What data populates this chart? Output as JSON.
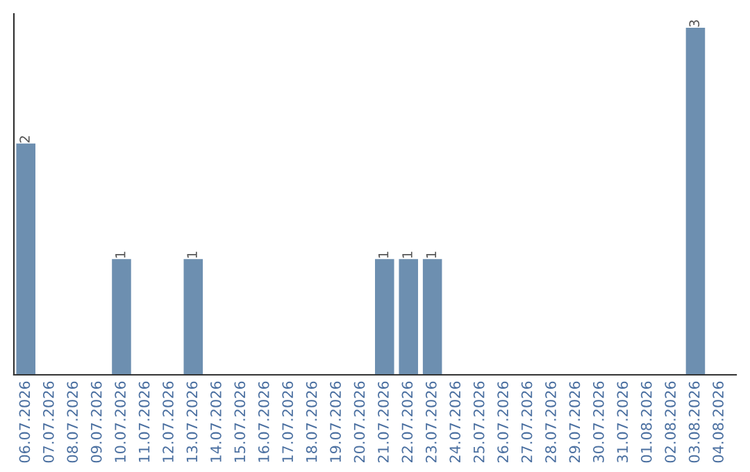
{
  "chart_data": {
    "type": "bar",
    "categories": [
      "06.07.2026",
      "07.07.2026",
      "08.07.2026",
      "09.07.2026",
      "10.07.2026",
      "11.07.2026",
      "12.07.2026",
      "13.07.2026",
      "14.07.2026",
      "15.07.2026",
      "16.07.2026",
      "17.07.2026",
      "18.07.2026",
      "19.07.2026",
      "20.07.2026",
      "21.07.2026",
      "22.07.2026",
      "23.07.2026",
      "24.07.2026",
      "25.07.2026",
      "26.07.2026",
      "27.07.2026",
      "28.07.2026",
      "29.07.2026",
      "30.07.2026",
      "31.07.2026",
      "01.08.2026",
      "02.08.2026",
      "03.08.2026",
      "04.08.2026"
    ],
    "values": [
      2,
      0,
      0,
      0,
      1,
      0,
      0,
      1,
      0,
      0,
      0,
      0,
      0,
      0,
      0,
      1,
      1,
      1,
      0,
      0,
      0,
      0,
      0,
      0,
      0,
      0,
      0,
      0,
      3,
      0
    ],
    "value_labels": [
      "2",
      null,
      null,
      null,
      "1",
      null,
      null,
      "1",
      null,
      null,
      null,
      null,
      null,
      null,
      null,
      "1",
      "1",
      "1",
      null,
      null,
      null,
      null,
      null,
      null,
      null,
      null,
      null,
      null,
      "3",
      null
    ],
    "color": "#6d8fb0",
    "ylim": [
      0,
      3.12
    ],
    "tick_labels": "x",
    "grid": false,
    "legend": false
  }
}
